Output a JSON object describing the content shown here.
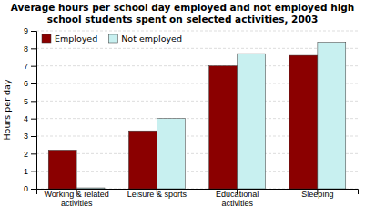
{
  "chart_data": {
    "type": "bar",
    "title": "Average hours per school day employed and not employed high\nschool students spent on selected activities, 2003",
    "categories": [
      "Working & related\nactivities",
      "Leisure & sports",
      "Educational\nactivities",
      "Sleeping"
    ],
    "series": [
      {
        "name": "Employed",
        "color": "#8B0000",
        "values": [
          2.2,
          3.3,
          7.0,
          7.6
        ]
      },
      {
        "name": "Not employed",
        "color": "#C8F0F0",
        "values": [
          0.05,
          4.0,
          7.7,
          8.35
        ]
      }
    ],
    "y_label": "Hours per day",
    "ylim": [
      0,
      9
    ],
    "yticks": [
      0,
      1,
      2,
      3,
      4,
      5,
      6,
      7,
      8,
      9
    ],
    "grid": true,
    "legend": "upper left"
  }
}
